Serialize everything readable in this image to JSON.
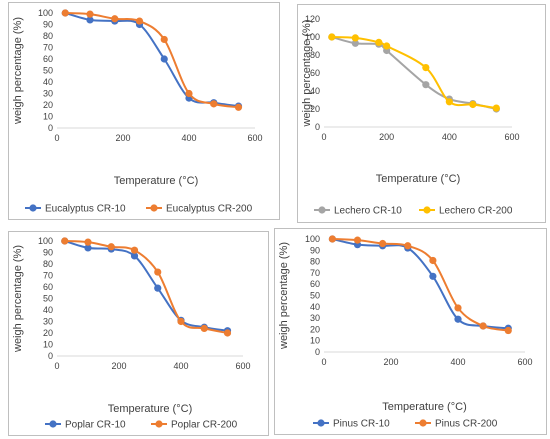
{
  "chart_data": [
    {
      "type": "line",
      "xlabel": "Temperature (°C)",
      "ylabel": "weigh percentage (%)",
      "xlim": [
        0,
        600
      ],
      "ylim": [
        0,
        100
      ],
      "xticks": [
        0,
        200,
        400,
        600
      ],
      "yticks": [
        0,
        10,
        20,
        30,
        40,
        50,
        60,
        70,
        80,
        90,
        100
      ],
      "legend": "bottom",
      "grid": false,
      "series": [
        {
          "name": "Eucalyptus CR-10",
          "color": "#4472c4",
          "x": [
            25,
            100,
            175,
            250,
            325,
            400,
            475,
            550
          ],
          "y": [
            100,
            94,
            93,
            90,
            60,
            26,
            22,
            19
          ]
        },
        {
          "name": "Eucalyptus CR-200",
          "color": "#ed7d31",
          "x": [
            25,
            100,
            175,
            250,
            325,
            400,
            475,
            550
          ],
          "y": [
            100,
            99,
            95,
            93,
            77,
            30,
            21,
            18
          ]
        }
      ]
    },
    {
      "type": "line",
      "xlabel": "Temperature (°C)",
      "ylabel": "weigh percentage (%)",
      "xlim": [
        0,
        600
      ],
      "ylim": [
        0,
        120
      ],
      "xticks": [
        0,
        200,
        400,
        600
      ],
      "yticks": [
        0,
        20,
        40,
        60,
        80,
        100,
        120
      ],
      "legend": "bottom",
      "grid": false,
      "series": [
        {
          "name": "Lechero CR-10",
          "color": "#a5a5a5",
          "x": [
            25,
            100,
            175,
            200,
            325,
            400,
            475,
            550
          ],
          "y": [
            100,
            93,
            92,
            85,
            47,
            31,
            26,
            20
          ]
        },
        {
          "name": "Lechero CR-200",
          "color": "#ffc000",
          "x": [
            25,
            100,
            175,
            200,
            325,
            400,
            475,
            550
          ],
          "y": [
            100,
            99,
            94,
            90,
            66,
            28,
            25,
            21
          ]
        }
      ]
    },
    {
      "type": "line",
      "xlabel": "Temperature (°C)",
      "ylabel": "weigh percentage (%)",
      "xlim": [
        0,
        600
      ],
      "ylim": [
        0,
        100
      ],
      "xticks": [
        0,
        200,
        400,
        600
      ],
      "yticks": [
        0,
        10,
        20,
        30,
        40,
        50,
        60,
        70,
        80,
        90,
        100
      ],
      "legend": "bottom",
      "grid": false,
      "series": [
        {
          "name": "Poplar CR-10",
          "color": "#4472c4",
          "x": [
            25,
            100,
            175,
            250,
            325,
            400,
            475,
            550
          ],
          "y": [
            100,
            94,
            93,
            87,
            59,
            31,
            25,
            22
          ]
        },
        {
          "name": "Poplar CR-200",
          "color": "#ed7d31",
          "x": [
            25,
            100,
            175,
            250,
            325,
            400,
            475,
            550
          ],
          "y": [
            100,
            99,
            95,
            92,
            73,
            30,
            24,
            20
          ]
        }
      ]
    },
    {
      "type": "line",
      "xlabel": "Temperature (°C)",
      "ylabel": "weigh percentage (%)",
      "xlim": [
        0,
        600
      ],
      "ylim": [
        0,
        100
      ],
      "xticks": [
        0,
        200,
        400,
        600
      ],
      "yticks": [
        0,
        10,
        20,
        30,
        40,
        50,
        60,
        70,
        80,
        90,
        100
      ],
      "legend": "bottom",
      "grid": false,
      "series": [
        {
          "name": "Pinus CR-10",
          "color": "#4472c4",
          "x": [
            25,
            100,
            175,
            250,
            325,
            400,
            475,
            550
          ],
          "y": [
            100,
            95,
            94,
            92,
            67,
            29,
            23,
            21
          ]
        },
        {
          "name": "Pinus CR-200",
          "color": "#ed7d31",
          "x": [
            25,
            100,
            175,
            250,
            325,
            400,
            475,
            550
          ],
          "y": [
            100,
            99,
            96,
            94,
            81,
            39,
            23,
            19
          ]
        }
      ]
    }
  ]
}
